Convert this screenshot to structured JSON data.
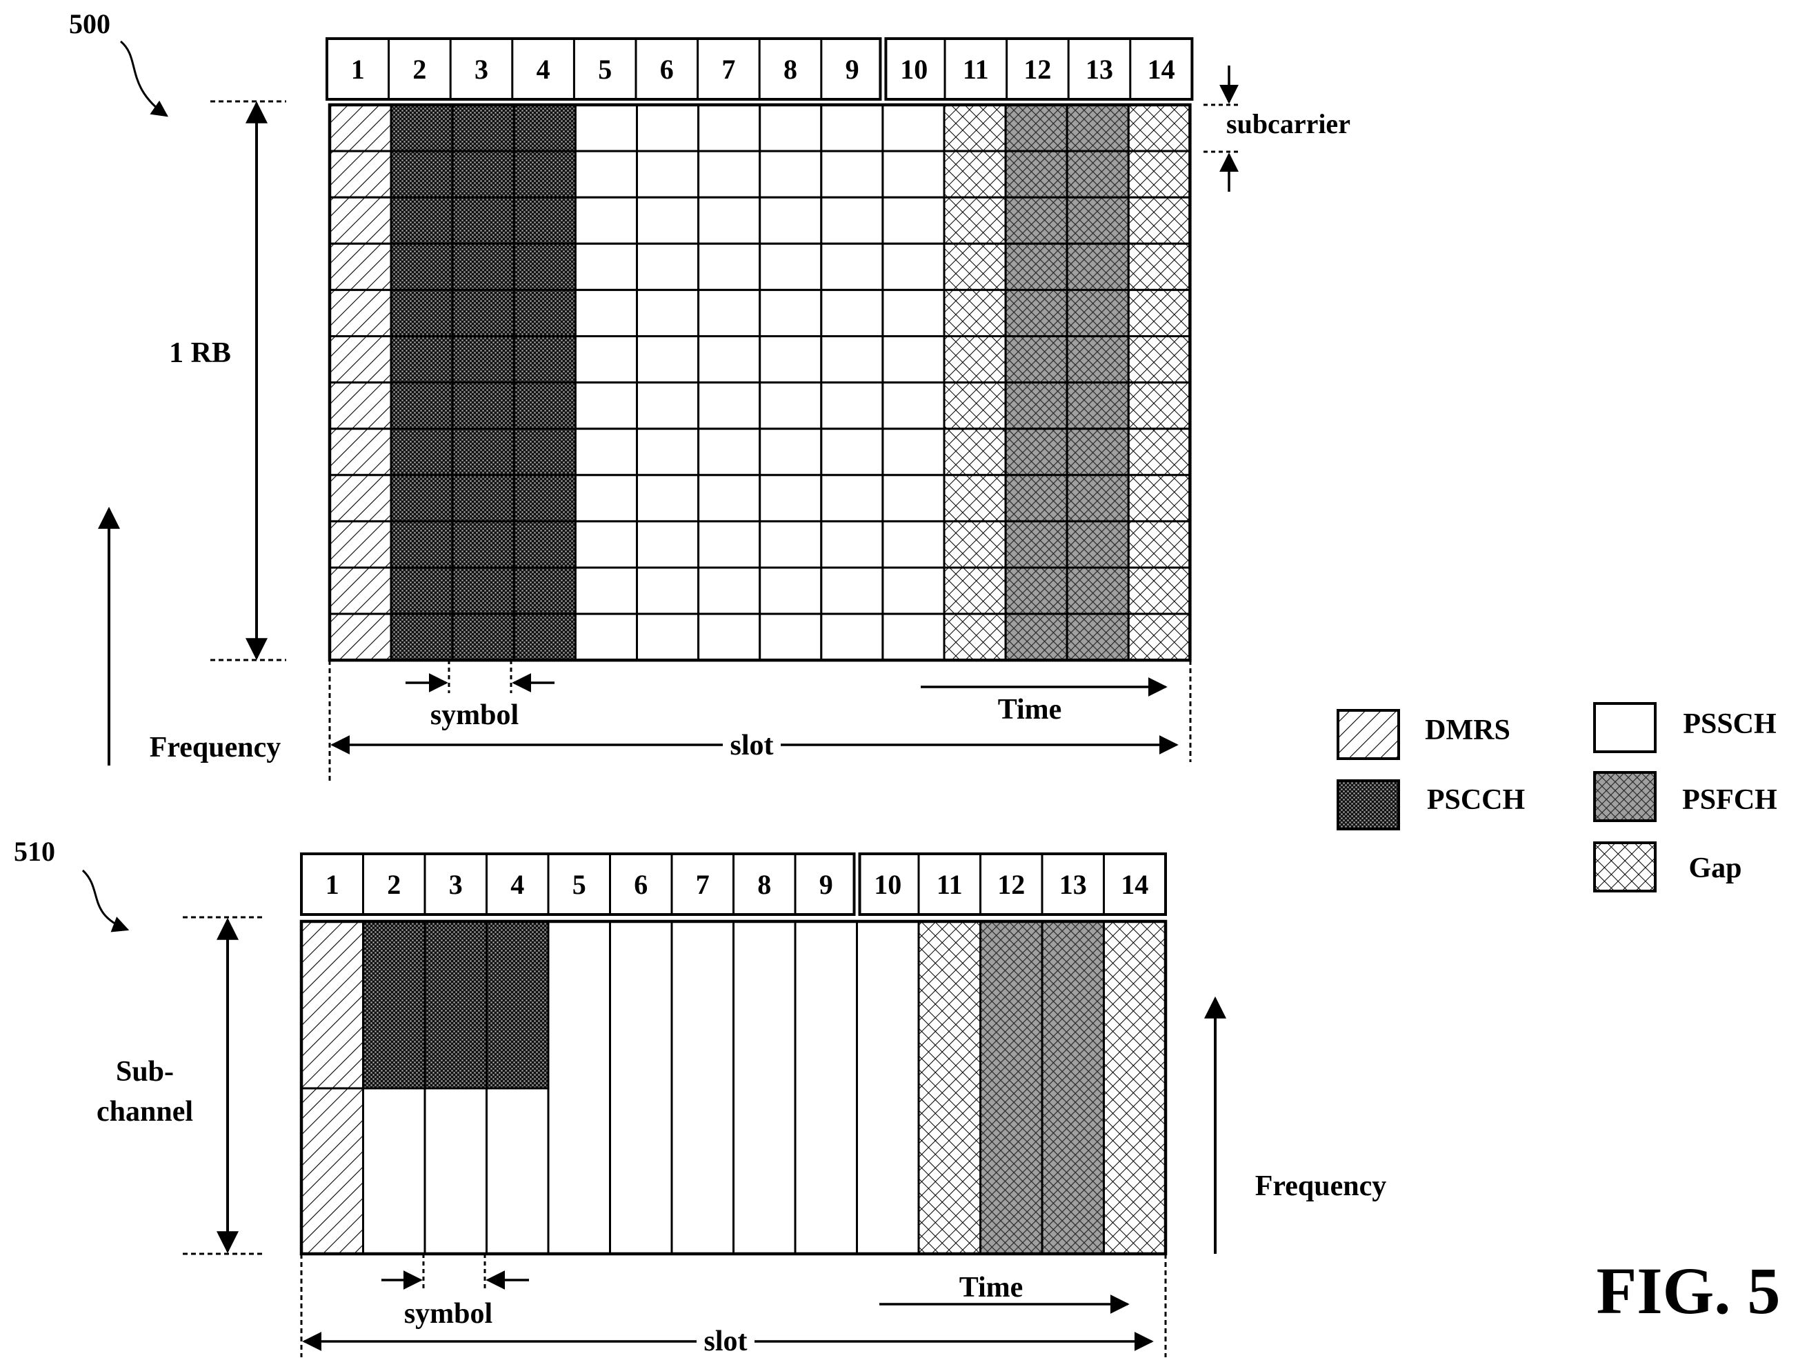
{
  "figure_label": "FIG. 5",
  "symbol_numbers": [
    "1",
    "2",
    "3",
    "4",
    "5",
    "6",
    "7",
    "8",
    "9",
    "10",
    "11",
    "12",
    "13",
    "14"
  ],
  "symbol_types": [
    "DMRS",
    "PSCCH",
    "PSCCH",
    "PSCCH",
    "PSSCH",
    "PSSCH",
    "PSSCH",
    "PSSCH",
    "PSSCH",
    "PSSCH",
    "Gap",
    "PSFCH",
    "PSFCH",
    "Gap"
  ],
  "diagram_500": {
    "ref": "500",
    "subcarrier_rows": 12,
    "rb_label": "1 RB",
    "subcarrier_label": "subcarrier",
    "symbol_label": "symbol",
    "slot_label": "slot",
    "time_label": "Time",
    "frequency_label": "Frequency"
  },
  "diagram_510": {
    "ref": "510",
    "subchannel_label_line1": "Sub-",
    "subchannel_label_line2": "channel",
    "pscch_symbols": [
      2,
      3,
      4
    ],
    "symbol_label": "symbol",
    "slot_label": "slot",
    "time_label": "Time",
    "frequency_label": "Frequency"
  },
  "legend": [
    {
      "label": "DMRS",
      "pattern": "dmrs"
    },
    {
      "label": "PSSCH",
      "pattern": "pssch"
    },
    {
      "label": "PSCCH",
      "pattern": "pscch"
    },
    {
      "label": "PSFCH",
      "pattern": "psfch"
    },
    {
      "label": "Gap",
      "pattern": "gap"
    }
  ]
}
